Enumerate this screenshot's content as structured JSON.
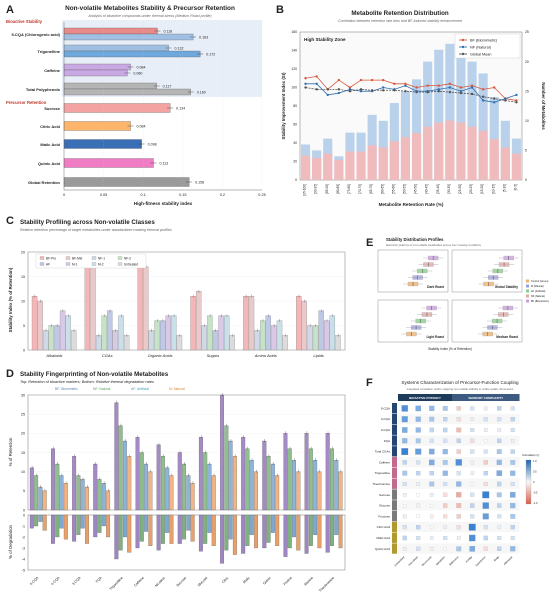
{
  "panels": {
    "A": {
      "letter": "A",
      "title": "Non-volatile Metabolites Stability & Precursor Retention",
      "subtitle": "Analysis of bioactive compounds under thermal stress (Medium Roast profile)",
      "group1": "Bioactive Stability",
      "group2": "Precursor Retention",
      "xlabel": "High-fitness stability index",
      "xticks": [
        "0",
        "0.05",
        "0.1",
        "0.15",
        "0.2",
        "0.25"
      ]
    },
    "B": {
      "letter": "B",
      "title": "Metabolite Retention Distribution",
      "subtitle": "Correlation between retention rate bins and BF-induced stability enhancement",
      "zone": "High Stability Zone",
      "xlabel": "Metabolite Retention Rate (%)",
      "ylabel_left": "Stability Improvement Index (SI)",
      "ylabel_right": "Number of Metabolites",
      "legend": [
        "BF (Biomimetic)",
        "NF (Natural)",
        "Global Mean"
      ]
    },
    "C": {
      "letter": "C",
      "title": "Stability Profiling across Non-volatile Classes",
      "subtitle": "Relative retention percentage of target metabolites under standardized roasting thermal profiles",
      "ylabel": "Stability Index (% of Retention)",
      "legend": [
        "BF-Pre",
        "BF-Mid",
        "NF-1",
        "NF-2",
        "AF",
        "M-1",
        "M-2",
        "Untreated"
      ],
      "categories": [
        "Alkaloids",
        "CGAs",
        "Organic Acids",
        "Sugars",
        "Amino Acids",
        "Lipids"
      ]
    },
    "D": {
      "letter": "D",
      "title": "Stability Fingerprinting of Non-volatile Metabolites",
      "subtitle": "Top: Retention of bioactive markers; Bottom: Relative thermal degradation rates",
      "legend": [
        "BF: Biomimetic",
        "NF: Natural",
        "AF: Artificial",
        "M: Manual"
      ],
      "ylabel_top": "% of Retention",
      "ylabel_bottom": "% of Degradation",
      "categories": [
        "5-CQA",
        "4-CQA",
        "3-CQA",
        "FQA",
        "Trigonelline",
        "Caffeine",
        "Nicotinic",
        "Sucrose",
        "Glucose",
        "Citric",
        "Malic",
        "Quinic",
        "Proline",
        "Alanine",
        "Theobromine"
      ]
    },
    "E": {
      "letter": "E",
      "title": "Stability Distribution Profiles",
      "subtitle": "Retention patterns of non-volatile metabolites across four roasting conditions",
      "facets": [
        "Dark Roast",
        "Global Stability",
        "Light Roast",
        "Medium Roast"
      ],
      "xlabel": "Stability Index (% of Retention)",
      "legend": [
        "Control (Green)",
        "M (Manual)",
        "AF (Artificial)",
        "NF (Natural)",
        "BF (Biomimetic)"
      ]
    },
    "F": {
      "letter": "F",
      "title": "Systems Characterization of Precursor-Function Coupling",
      "subtitle": "Integrated correlation matrix mapping non-volatile stability to coffee quality dimensions",
      "header_left": "BIOACTIVE POTENCY",
      "header_right": "SENSORY COMPLEXITY",
      "colorbar_title": "Correlation (r)",
      "rows": [
        "5-CQA",
        "4-CQA",
        "3-CQA",
        "FQA",
        "Total CGAs",
        "Caffeine",
        "Trigonelline",
        "Theobromine",
        "Sucrose",
        "Glucose",
        "Fructose",
        "Citric Acid",
        "Malic Acid",
        "Quinic Acid"
      ],
      "cols": [
        "Antioxidant",
        "Anti-inflam",
        "Neuro-prot",
        "Metabolic",
        "Bitterness",
        "Acidity",
        "Sweetness",
        "Body",
        "Aftertaste"
      ]
    }
  },
  "chart_data": [
    {
      "panel": "A",
      "type": "bar",
      "orientation": "horizontal",
      "categories": [
        "5-CQA (Chlorogenic acid)",
        "Trigonelline",
        "Caffeine",
        "Total Polyphenols",
        "Sucrose",
        "Citric Acid",
        "Malic Acid",
        "Quinic Acid",
        "Global Retention"
      ],
      "series": [
        {
          "values": [
            0.118,
            0.132,
            0.084,
            0.117,
            0.134,
            0.084,
            0.098,
            0.113,
            0.158
          ]
        },
        {
          "values": [
            0.163,
            0.172,
            0.08,
            0.16,
            null,
            null,
            null,
            null,
            null
          ]
        }
      ],
      "bar_labels": [
        "0.118",
        "0.163",
        "0.132",
        "0.172",
        "0.084",
        "0.080",
        "0.117",
        "0.160",
        "0.134",
        "0.084",
        "0.098",
        "0.113",
        "0.158"
      ],
      "colors": [
        "#e88a8a",
        "#9fc0e3",
        "#c9a9e3",
        "#b5b5b5",
        "#f4a3a3",
        "#fdb56b",
        "#3a6fb5",
        "#f07cc4",
        "#9a9a9a"
      ],
      "xlim": [
        0,
        0.25
      ]
    },
    {
      "panel": "B",
      "type": "bar",
      "categories": [
        "[95-100]",
        "[90-95]",
        "[85-90]",
        "[80-85]",
        "[75-80]",
        "[70-75]",
        "[65-70]",
        "[60-65]",
        "[55-60]",
        "[50-55]",
        "[45-50]",
        "[40-45]",
        "[35-40]",
        "[30-35]",
        "[25-30]",
        "[20-25]",
        "[15-20]",
        "[10-15]",
        "[5-10]",
        "[0-5]"
      ],
      "counts": [
        6,
        5,
        7,
        4,
        8,
        8,
        11,
        10,
        13,
        15,
        17,
        20,
        22,
        23,
        22,
        20,
        18,
        14,
        10,
        7
      ],
      "series": [
        {
          "name": "BF (Biomimetic)",
          "values": [
            110,
            112,
            98,
            108,
            100,
            108,
            108,
            108,
            104,
            104,
            100,
            102,
            102,
            104,
            100,
            102,
            98,
            100,
            88,
            86
          ]
        },
        {
          "name": "NF (Natural)",
          "values": [
            104,
            104,
            92,
            94,
            98,
            96,
            96,
            100,
            98,
            102,
            96,
            96,
            98,
            100,
            96,
            100,
            86,
            84,
            88,
            92
          ]
        },
        {
          "name": "Global Mean",
          "values": [
            100,
            98,
            98,
            98,
            96,
            98,
            97,
            97,
            97,
            96,
            95,
            95,
            96,
            95,
            94,
            93,
            90,
            88,
            86,
            84
          ]
        }
      ],
      "ylim_left": [
        0,
        160
      ],
      "ylim_right": [
        0,
        25
      ]
    },
    {
      "panel": "C",
      "type": "bar",
      "categories": [
        "Alkaloids",
        "CGAs",
        "Organic Acids",
        "Sugars",
        "Amino Acids",
        "Lipids"
      ],
      "series": [
        {
          "name": "BF-Pre",
          "values": [
            11,
            18,
            18,
            11,
            11,
            11
          ]
        },
        {
          "name": "BF-Mid",
          "values": [
            10,
            17,
            17,
            12,
            11,
            10
          ]
        },
        {
          "name": "NF-1",
          "values": [
            4,
            3,
            4,
            5,
            4,
            5
          ]
        },
        {
          "name": "NF-2",
          "values": [
            5,
            7,
            6,
            7,
            6,
            5
          ]
        },
        {
          "name": "AF",
          "values": [
            5,
            8,
            6,
            4,
            7,
            8
          ]
        },
        {
          "name": "M-1",
          "values": [
            8,
            4,
            7,
            7,
            5,
            6
          ]
        },
        {
          "name": "M-2",
          "values": [
            7,
            7,
            7,
            7,
            6,
            7
          ]
        },
        {
          "name": "Untreated",
          "values": [
            4,
            3,
            3,
            3,
            3,
            3
          ]
        }
      ],
      "ylim": [
        0,
        20
      ],
      "yticks": [
        "0",
        "5",
        "10",
        "15",
        "20"
      ]
    },
    {
      "panel": "D",
      "type": "bar",
      "categories": [
        "5-CQA",
        "4-CQA",
        "3-CQA",
        "FQA",
        "Trigonelline",
        "Caffeine",
        "Nicotinic",
        "Sucrose",
        "Glucose",
        "Citric",
        "Malic",
        "Quinic",
        "Proline",
        "Alanine",
        "Theobromine"
      ],
      "series": [
        {
          "name": "BF",
          "top": [
            11,
            16,
            14,
            12,
            28,
            19,
            17,
            15,
            19,
            30,
            19,
            18,
            20,
            20,
            20
          ],
          "bottom": [
            -1.2,
            -2.6,
            -2.4,
            -2.0,
            -4.0,
            -3.0,
            -3.2,
            -2.6,
            -3.3,
            -4.4,
            -3.5,
            -3.0,
            -3.8,
            -3.5,
            -3.4
          ]
        },
        {
          "name": "NF",
          "top": [
            9,
            12,
            9,
            8,
            22,
            15,
            14,
            12,
            15,
            22,
            16,
            14,
            16,
            16,
            16
          ],
          "bottom": [
            -1.0,
            -2.0,
            -1.8,
            -1.6,
            -3.2,
            -2.4,
            -2.6,
            -2.2,
            -2.6,
            -3.2,
            -2.8,
            -2.5,
            -3.0,
            -2.8,
            -2.8
          ]
        },
        {
          "name": "AF",
          "top": [
            6,
            9,
            8,
            7,
            18,
            12,
            11,
            9,
            12,
            18,
            13,
            12,
            13,
            13,
            13
          ],
          "bottom": [
            -0.6,
            -1.2,
            -1.2,
            -1.0,
            -2.0,
            -1.5,
            -1.6,
            -1.4,
            -1.6,
            -2.2,
            -1.8,
            -1.6,
            -2.0,
            -1.8,
            -1.8
          ]
        },
        {
          "name": "M",
          "top": [
            5,
            7,
            6,
            5,
            14,
            10,
            9,
            7,
            9,
            14,
            10,
            9,
            10,
            10,
            10
          ],
          "bottom": [
            -1.4,
            -2.2,
            -2.6,
            -2.0,
            -3.4,
            -2.8,
            -2.6,
            -2.4,
            -2.8,
            -3.6,
            -3.0,
            -2.8,
            -3.2,
            -3.0,
            -3.0
          ]
        }
      ],
      "ylim_top": [
        0,
        30
      ],
      "ylim_bottom": [
        -5,
        0
      ]
    },
    {
      "panel": "E",
      "type": "box",
      "facets": [
        "Dark Roast",
        "Global Stability",
        "Light Roast",
        "Medium Roast"
      ],
      "series": [
        "Control (Green)",
        "M (Manual)",
        "AF (Artificial)",
        "NF (Natural)",
        "BF (Biomimetic)"
      ],
      "medians": [
        [
          40,
          46,
          52,
          60,
          66
        ],
        [
          42,
          48,
          54,
          62,
          68
        ],
        [
          38,
          44,
          50,
          58,
          64
        ],
        [
          41,
          47,
          53,
          61,
          67
        ]
      ]
    },
    {
      "panel": "F",
      "type": "heatmap",
      "rows": [
        "5-CQA",
        "4-CQA",
        "3-CQA",
        "FQA",
        "Total CGAs",
        "Caffeine",
        "Trigonelline",
        "Theobromine",
        "Sucrose",
        "Glucose",
        "Fructose",
        "Citric Acid",
        "Malic Acid",
        "Quinic Acid"
      ],
      "cols": [
        "Antioxidant",
        "Anti-inflam",
        "Neuro-prot",
        "Metabolic",
        "Bitterness",
        "Acidity",
        "Sweetness",
        "Body",
        "Aftertaste"
      ],
      "values": [
        [
          0.8,
          0.6,
          0.5,
          0.4,
          -0.3,
          0.2,
          0.1,
          0.3,
          0.2
        ],
        [
          0.7,
          0.5,
          0.4,
          0.3,
          -0.2,
          0.1,
          0.2,
          0.2,
          0.3
        ],
        [
          0.6,
          0.5,
          0.3,
          0.3,
          -0.4,
          0.2,
          0.1,
          0.1,
          0.2
        ],
        [
          0.5,
          0.4,
          0.2,
          0.2,
          0.3,
          -0.2,
          0.0,
          0.3,
          0.1
        ],
        [
          0.9,
          0.7,
          0.6,
          0.5,
          -0.3,
          0.2,
          0.2,
          0.4,
          0.3
        ],
        [
          0.3,
          0.2,
          0.6,
          0.4,
          0.8,
          -0.1,
          -0.3,
          0.5,
          0.4
        ],
        [
          0.4,
          0.3,
          0.3,
          0.5,
          0.2,
          0.1,
          0.3,
          0.6,
          0.5
        ],
        [
          0.2,
          0.1,
          0.4,
          0.2,
          0.5,
          0.0,
          -0.2,
          0.3,
          0.2
        ],
        [
          -0.1,
          0.0,
          0.1,
          -0.2,
          -0.5,
          0.2,
          0.9,
          0.4,
          0.6
        ],
        [
          0.0,
          -0.1,
          0.0,
          -0.3,
          -0.4,
          0.3,
          0.8,
          0.3,
          0.5
        ],
        [
          0.1,
          0.0,
          -0.1,
          -0.2,
          -0.3,
          0.2,
          0.7,
          0.2,
          0.4
        ],
        [
          0.2,
          0.3,
          0.0,
          0.1,
          -0.2,
          0.9,
          0.2,
          0.1,
          0.3
        ],
        [
          0.3,
          0.2,
          0.1,
          0.2,
          -0.1,
          0.8,
          0.3,
          0.2,
          0.2
        ],
        [
          0.1,
          0.2,
          -0.1,
          0.0,
          0.4,
          0.6,
          -0.2,
          0.3,
          0.5
        ]
      ],
      "zlim": [
        -1,
        1
      ]
    }
  ]
}
